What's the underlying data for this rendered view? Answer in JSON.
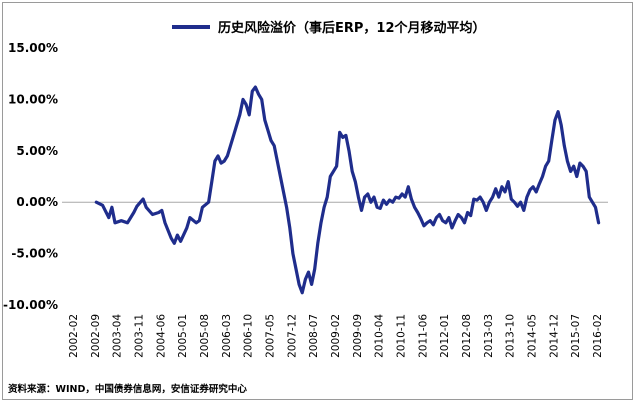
{
  "legend": {
    "label": "历史风险溢价（事后ERP，12个月移动平均）"
  },
  "source": "资料来源：WIND，中国债券信息网，安信证券研究中心",
  "chart_data": {
    "type": "line",
    "title": "",
    "xlabel": "",
    "ylabel": "",
    "ylim": [
      -10,
      15
    ],
    "y_ticks": [
      "15.00%",
      "10.00%",
      "5.00%",
      "0.00%",
      "-5.00%",
      "-10.00%"
    ],
    "x_ticks": [
      "2002-02",
      "2002-09",
      "2003-04",
      "2003-11",
      "2004-06",
      "2005-01",
      "2005-08",
      "2006-03",
      "2006-10",
      "2007-05",
      "2007-12",
      "2008-07",
      "2009-02",
      "2009-09",
      "2010-04",
      "2010-11",
      "2011-06",
      "2012-01",
      "2012-08",
      "2013-03",
      "2013-10",
      "2014-05",
      "2014-12",
      "2015-07",
      "2016-02"
    ],
    "grid": false,
    "legend_position": "top",
    "series_color": "#1f2d8c",
    "series": [
      {
        "name": "历史风险溢价（事后ERP，12个月移动平均）",
        "points": [
          [
            "2003-01",
            0.0
          ],
          [
            "2003-03",
            -0.3
          ],
          [
            "2003-05",
            -1.5
          ],
          [
            "2003-06",
            -0.5
          ],
          [
            "2003-07",
            -2.0
          ],
          [
            "2003-09",
            -1.8
          ],
          [
            "2003-11",
            -2.0
          ],
          [
            "2004-01",
            -1.0
          ],
          [
            "2004-02",
            -0.4
          ],
          [
            "2004-04",
            0.3
          ],
          [
            "2004-05",
            -0.5
          ],
          [
            "2004-07",
            -1.2
          ],
          [
            "2004-09",
            -1.0
          ],
          [
            "2004-10",
            -0.8
          ],
          [
            "2004-11",
            -2.0
          ],
          [
            "2005-01",
            -3.5
          ],
          [
            "2005-02",
            -4.0
          ],
          [
            "2005-03",
            -3.2
          ],
          [
            "2005-04",
            -3.8
          ],
          [
            "2005-06",
            -2.5
          ],
          [
            "2005-07",
            -1.5
          ],
          [
            "2005-09",
            -2.0
          ],
          [
            "2005-10",
            -1.8
          ],
          [
            "2005-11",
            -0.5
          ],
          [
            "2006-01",
            0.0
          ],
          [
            "2006-02",
            2.0
          ],
          [
            "2006-03",
            4.0
          ],
          [
            "2006-04",
            4.5
          ],
          [
            "2006-05",
            3.8
          ],
          [
            "2006-06",
            4.0
          ],
          [
            "2006-07",
            4.5
          ],
          [
            "2006-08",
            5.5
          ],
          [
            "2006-09",
            6.5
          ],
          [
            "2006-10",
            7.5
          ],
          [
            "2006-11",
            8.5
          ],
          [
            "2006-12",
            10.0
          ],
          [
            "2007-01",
            9.5
          ],
          [
            "2007-02",
            8.5
          ],
          [
            "2007-03",
            10.8
          ],
          [
            "2007-04",
            11.2
          ],
          [
            "2007-05",
            10.5
          ],
          [
            "2007-06",
            10.0
          ],
          [
            "2007-07",
            8.0
          ],
          [
            "2007-08",
            7.0
          ],
          [
            "2007-09",
            6.0
          ],
          [
            "2007-10",
            5.5
          ],
          [
            "2007-11",
            4.0
          ],
          [
            "2007-12",
            2.5
          ],
          [
            "2008-01",
            1.0
          ],
          [
            "2008-02",
            -0.5
          ],
          [
            "2008-03",
            -2.5
          ],
          [
            "2008-04",
            -5.0
          ],
          [
            "2008-05",
            -6.5
          ],
          [
            "2008-06",
            -8.0
          ],
          [
            "2008-07",
            -8.8
          ],
          [
            "2008-08",
            -7.5
          ],
          [
            "2008-09",
            -6.8
          ],
          [
            "2008-10",
            -8.0
          ],
          [
            "2008-11",
            -6.5
          ],
          [
            "2008-12",
            -4.0
          ],
          [
            "2009-01",
            -2.0
          ],
          [
            "2009-02",
            -0.5
          ],
          [
            "2009-03",
            0.5
          ],
          [
            "2009-04",
            2.5
          ],
          [
            "2009-05",
            3.0
          ],
          [
            "2009-06",
            3.5
          ],
          [
            "2009-07",
            6.8
          ],
          [
            "2009-08",
            6.3
          ],
          [
            "2009-09",
            6.5
          ],
          [
            "2009-10",
            5.0
          ],
          [
            "2009-11",
            3.0
          ],
          [
            "2009-12",
            2.0
          ],
          [
            "2010-01",
            0.5
          ],
          [
            "2010-02",
            -0.8
          ],
          [
            "2010-03",
            0.5
          ],
          [
            "2010-04",
            0.8
          ],
          [
            "2010-05",
            0.0
          ],
          [
            "2010-06",
            0.5
          ],
          [
            "2010-07",
            -0.5
          ],
          [
            "2010-08",
            -0.6
          ],
          [
            "2010-09",
            0.2
          ],
          [
            "2010-10",
            -0.2
          ],
          [
            "2010-11",
            0.2
          ],
          [
            "2010-12",
            0.0
          ],
          [
            "2011-01",
            0.5
          ],
          [
            "2011-02",
            0.4
          ],
          [
            "2011-03",
            0.8
          ],
          [
            "2011-04",
            0.5
          ],
          [
            "2011-05",
            1.5
          ],
          [
            "2011-06",
            0.3
          ],
          [
            "2011-07",
            -0.5
          ],
          [
            "2011-08",
            -1.0
          ],
          [
            "2011-09",
            -1.6
          ],
          [
            "2011-10",
            -2.3
          ],
          [
            "2011-11",
            -2.0
          ],
          [
            "2011-12",
            -1.8
          ],
          [
            "2012-01",
            -2.2
          ],
          [
            "2012-02",
            -1.5
          ],
          [
            "2012-03",
            -1.2
          ],
          [
            "2012-04",
            -1.8
          ],
          [
            "2012-05",
            -2.0
          ],
          [
            "2012-06",
            -1.5
          ],
          [
            "2012-07",
            -2.5
          ],
          [
            "2012-08",
            -1.8
          ],
          [
            "2012-09",
            -1.2
          ],
          [
            "2012-10",
            -1.5
          ],
          [
            "2012-11",
            -2.0
          ],
          [
            "2012-12",
            -1.0
          ],
          [
            "2013-01",
            -1.3
          ],
          [
            "2013-02",
            0.3
          ],
          [
            "2013-03",
            0.2
          ],
          [
            "2013-04",
            0.5
          ],
          [
            "2013-05",
            0.0
          ],
          [
            "2013-06",
            -0.8
          ],
          [
            "2013-07",
            0.0
          ],
          [
            "2013-08",
            0.5
          ],
          [
            "2013-09",
            1.3
          ],
          [
            "2013-10",
            0.5
          ],
          [
            "2013-11",
            1.5
          ],
          [
            "2013-12",
            1.0
          ],
          [
            "2014-01",
            2.0
          ],
          [
            "2014-02",
            0.3
          ],
          [
            "2014-03",
            0.0
          ],
          [
            "2014-04",
            -0.4
          ],
          [
            "2014-05",
            0.0
          ],
          [
            "2014-06",
            -0.8
          ],
          [
            "2014-07",
            0.5
          ],
          [
            "2014-08",
            1.2
          ],
          [
            "2014-09",
            1.5
          ],
          [
            "2014-10",
            1.0
          ],
          [
            "2014-11",
            1.8
          ],
          [
            "2014-12",
            2.5
          ],
          [
            "2015-01",
            3.5
          ],
          [
            "2015-02",
            4.0
          ],
          [
            "2015-03",
            6.0
          ],
          [
            "2015-04",
            8.0
          ],
          [
            "2015-05",
            8.8
          ],
          [
            "2015-06",
            7.5
          ],
          [
            "2015-07",
            5.5
          ],
          [
            "2015-08",
            4.0
          ],
          [
            "2015-09",
            3.0
          ],
          [
            "2015-10",
            3.5
          ],
          [
            "2015-11",
            2.5
          ],
          [
            "2015-12",
            3.8
          ],
          [
            "2016-01",
            3.5
          ],
          [
            "2016-02",
            3.0
          ],
          [
            "2016-03",
            0.5
          ],
          [
            "2016-04",
            0.0
          ],
          [
            "2016-05",
            -0.5
          ],
          [
            "2016-06",
            -2.0
          ]
        ]
      }
    ]
  }
}
